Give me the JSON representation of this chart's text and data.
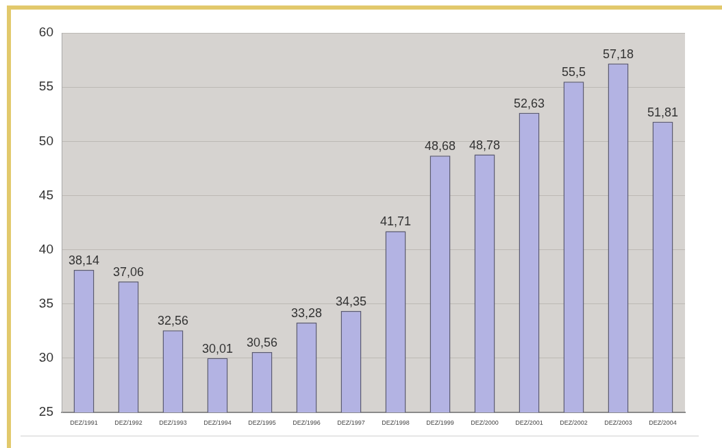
{
  "chart_data": {
    "type": "bar",
    "categories": [
      "DEZ/1991",
      "DEZ/1992",
      "DEZ/1993",
      "DEZ/1994",
      "DEZ/1995",
      "DEZ/1996",
      "DEZ/1997",
      "DEZ/1998",
      "DEZ/1999",
      "DEZ/2000",
      "DEZ/2001",
      "DEZ/2002",
      "DEZ/2003",
      "DEZ/2004"
    ],
    "values": [
      38.14,
      37.06,
      32.56,
      30.01,
      30.56,
      33.28,
      34.35,
      41.71,
      48.68,
      48.78,
      52.63,
      55.5,
      57.18,
      51.81
    ],
    "value_labels": [
      "38,14",
      "37,06",
      "32,56",
      "30,01",
      "30,56",
      "33,28",
      "34,35",
      "41,71",
      "48,68",
      "48,78",
      "52,63",
      "55,5",
      "57,18",
      "51,81"
    ],
    "color": "#b3b3e3",
    "ylim": [
      25,
      60
    ],
    "yticks": [
      25,
      30,
      35,
      40,
      45,
      50,
      55,
      60
    ],
    "grid": "y"
  }
}
